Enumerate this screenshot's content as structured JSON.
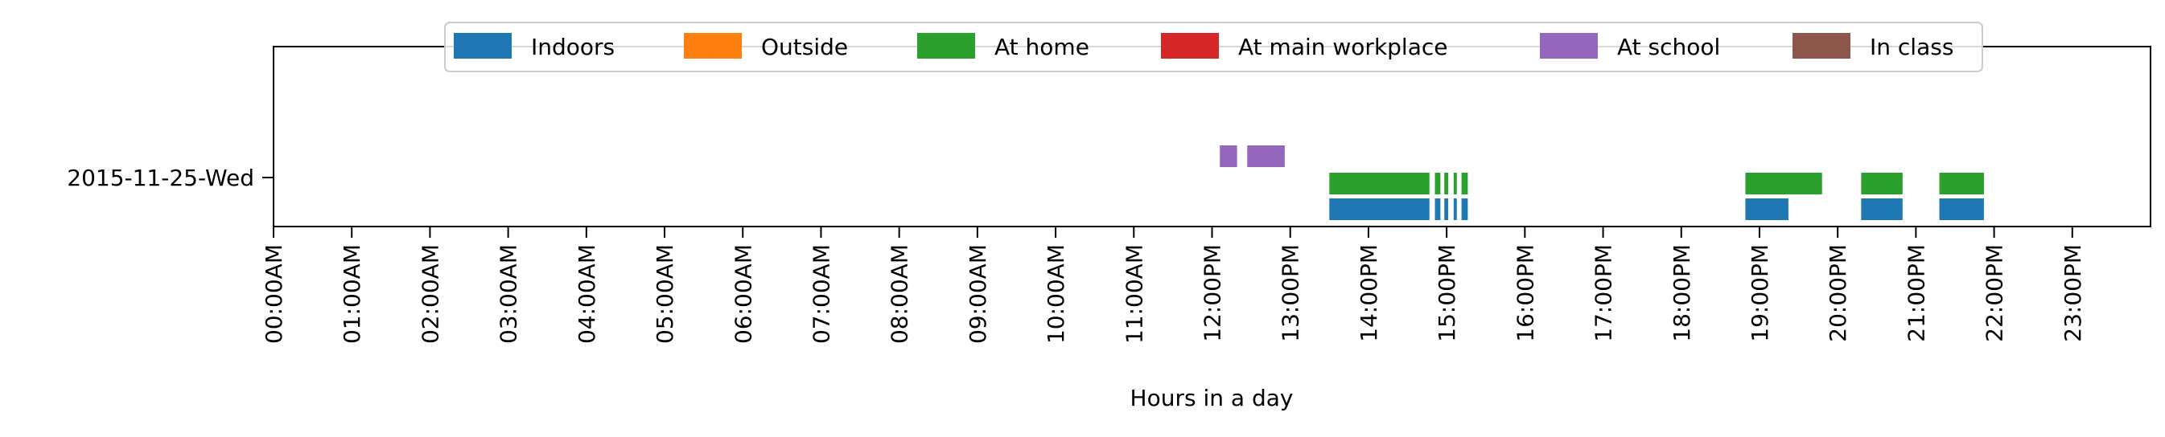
{
  "chart_data": {
    "type": "timeline",
    "xlabel": "Hours in a day",
    "ylabel": "",
    "xlim": [
      0,
      24
    ],
    "x_ticks": [
      "00:00AM",
      "01:00AM",
      "02:00AM",
      "03:00AM",
      "04:00AM",
      "05:00AM",
      "06:00AM",
      "07:00AM",
      "08:00AM",
      "09:00AM",
      "10:00AM",
      "11:00AM",
      "12:00PM",
      "13:00PM",
      "14:00PM",
      "15:00PM",
      "16:00PM",
      "17:00PM",
      "18:00PM",
      "19:00PM",
      "20:00PM",
      "21:00PM",
      "22:00PM",
      "23:00PM"
    ],
    "categories": [
      "2015-11-25-Wed"
    ],
    "legend": {
      "placement": "top-center"
    },
    "grid": false,
    "series": [
      {
        "name": "Indoors",
        "color": "#1f77b4",
        "intervals": [
          [
            13.5,
            14.78
          ],
          [
            14.85,
            14.92
          ],
          [
            14.97,
            15.02
          ],
          [
            15.09,
            15.13
          ],
          [
            15.19,
            15.27
          ],
          [
            18.82,
            19.37
          ],
          [
            20.3,
            20.83
          ],
          [
            21.3,
            21.87
          ]
        ]
      },
      {
        "name": "Outside",
        "color": "#ff7f0e",
        "intervals": []
      },
      {
        "name": "At home",
        "color": "#2ca02c",
        "intervals": [
          [
            13.5,
            14.78
          ],
          [
            14.85,
            14.92
          ],
          [
            14.97,
            15.02
          ],
          [
            15.09,
            15.13
          ],
          [
            15.19,
            15.27
          ],
          [
            18.82,
            19.8
          ],
          [
            20.3,
            20.83
          ],
          [
            21.3,
            21.87
          ]
        ]
      },
      {
        "name": "At main workplace",
        "color": "#d62728",
        "intervals": []
      },
      {
        "name": "At school",
        "color": "#9467bd",
        "intervals": [
          [
            12.1,
            12.32
          ],
          [
            12.45,
            12.93
          ]
        ]
      },
      {
        "name": "In class",
        "color": "#8c564b",
        "intervals": []
      }
    ]
  }
}
